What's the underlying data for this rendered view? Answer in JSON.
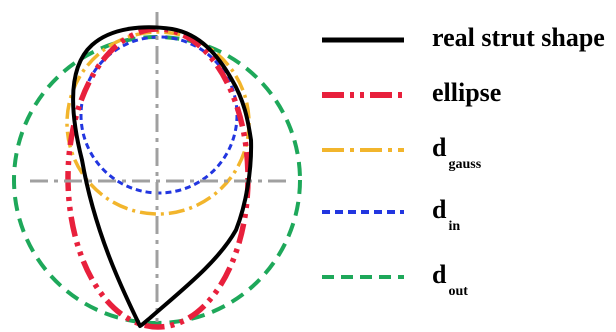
{
  "legend": {
    "items": [
      {
        "label": "real strut shape",
        "subscript": "",
        "color": "#000000",
        "style": "solid"
      },
      {
        "label": "ellipse",
        "subscript": "",
        "color": "#e8203c",
        "style": "dash-dot-dot"
      },
      {
        "label": "d",
        "subscript": "gauss",
        "color": "#f2b52c",
        "style": "dash-dot"
      },
      {
        "label": "d",
        "subscript": "in",
        "color": "#2236e0",
        "style": "dashed-fine"
      },
      {
        "label": "d",
        "subscript": "out",
        "color": "#1ea85a",
        "style": "dashed"
      }
    ]
  },
  "colors": {
    "axis": "#a0a0a0",
    "background": "#ffffff"
  }
}
